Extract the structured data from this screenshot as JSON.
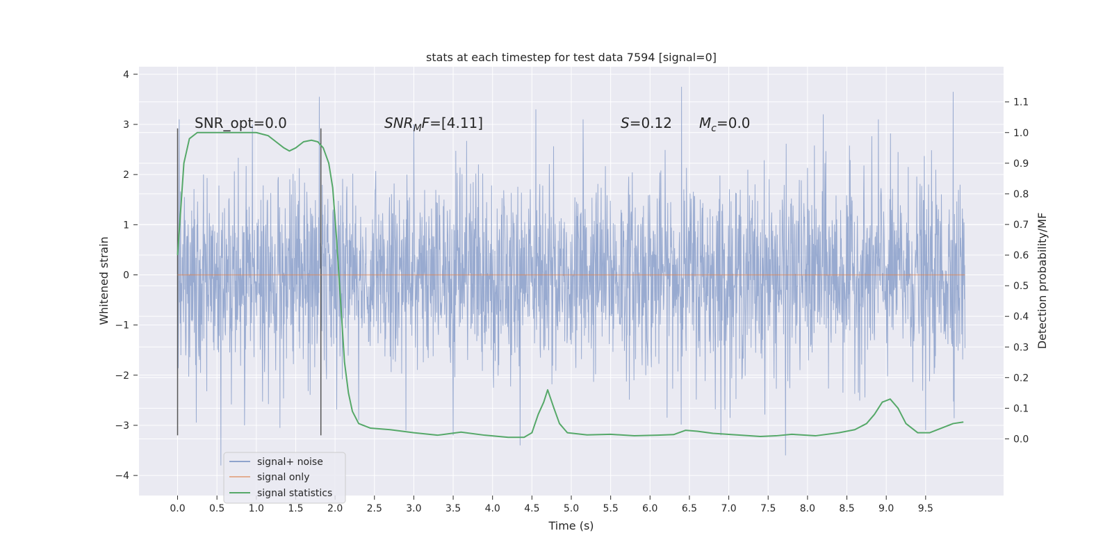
{
  "chart_data": {
    "type": "line",
    "title": "stats at each timestep for test data 7594 [signal=0]",
    "xlabel": "Time (s)",
    "ylabel": "Whitened strain",
    "y2label": "Detection probability/MF",
    "xlim": [
      -0.49,
      10.49
    ],
    "ylim": [
      -4.4,
      4.15
    ],
    "y2lim": [
      -0.185,
      1.215
    ],
    "grid": true,
    "legend_position": "lower-left",
    "x_ticks": [
      0.0,
      0.5,
      1.0,
      1.5,
      2.0,
      2.5,
      3.0,
      3.5,
      4.0,
      4.5,
      5.0,
      5.5,
      6.0,
      6.5,
      7.0,
      7.5,
      8.0,
      8.5,
      9.0,
      9.5
    ],
    "x_tick_labels": [
      "0.0",
      "0.5",
      "1.0",
      "1.5",
      "2.0",
      "2.5",
      "3.0",
      "3.5",
      "4.0",
      "4.5",
      "5.0",
      "5.5",
      "6.0",
      "6.5",
      "7.0",
      "7.5",
      "8.0",
      "8.5",
      "9.0",
      "9.5"
    ],
    "y_ticks": [
      -4,
      -3,
      -2,
      -1,
      0,
      1,
      2,
      3,
      4
    ],
    "y_tick_labels": [
      "−4",
      "−3",
      "−2",
      "−1",
      "0",
      "1",
      "2",
      "3",
      "4"
    ],
    "y2_ticks": [
      0.0,
      0.1,
      0.2,
      0.3,
      0.4,
      0.5,
      0.6,
      0.7,
      0.8,
      0.9,
      1.0,
      1.1
    ],
    "y2_tick_labels": [
      "0.0",
      "0.1",
      "0.2",
      "0.3",
      "0.4",
      "0.5",
      "0.6",
      "0.7",
      "0.8",
      "0.9",
      "1.0",
      "1.1"
    ],
    "vertical_markers": [
      {
        "x": 0.0,
        "y_range": [
          -3.2,
          2.92
        ]
      },
      {
        "x": 1.82,
        "y_range": [
          -3.2,
          2.92
        ]
      }
    ],
    "annotations": {
      "snr_opt": "SNR_opt=0.0",
      "snr_mf_main": "SNR",
      "snr_mf_sub": "M",
      "snr_mf_tail": "F",
      "snr_mf_value": "=[4.11]",
      "s_main": "S",
      "s_value": "=0.12",
      "mc_main": "M",
      "mc_sub": "c",
      "mc_value": "=0.0"
    },
    "legend": [
      {
        "label": "signal+ noise",
        "color": "#8fa3cc"
      },
      {
        "label": "signal only",
        "color": "#dd8452"
      },
      {
        "label": "signal statistics",
        "color": "#55a868"
      }
    ],
    "series": [
      {
        "name": "signal+ noise",
        "axis": "left",
        "color": "#8fa3cc",
        "x_range": [
          0.0,
          10.0
        ],
        "envelope": {
          "upper_typical": 2.0,
          "lower_typical": -2.1,
          "spikes": [
            {
              "x": 0.02,
              "y": 3.1
            },
            {
              "x": 0.55,
              "y": -3.8
            },
            {
              "x": 1.8,
              "y": 3.55
            },
            {
              "x": 2.3,
              "y": -2.9
            },
            {
              "x": 3.5,
              "y": -3.2
            },
            {
              "x": 4.55,
              "y": 3.3
            },
            {
              "x": 4.35,
              "y": -3.4
            },
            {
              "x": 6.4,
              "y": 3.75
            },
            {
              "x": 7.72,
              "y": 3.77
            },
            {
              "x": 7.72,
              "y": -3.6
            },
            {
              "x": 9.85,
              "y": 3.65
            },
            {
              "x": 9.5,
              "y": -3.1
            },
            {
              "x": 5.15,
              "y": 3.1
            },
            {
              "x": 8.2,
              "y": 3.2
            },
            {
              "x": 3.0,
              "y": 3.0
            },
            {
              "x": 1.3,
              "y": -3.05
            },
            {
              "x": 0.95,
              "y": 3.0
            },
            {
              "x": 6.9,
              "y": -3.2
            },
            {
              "x": 2.9,
              "y": -3.1
            },
            {
              "x": 8.9,
              "y": 3.1
            },
            {
              "x": 0.85,
              "y": -3.0
            }
          ]
        }
      },
      {
        "name": "signal only",
        "axis": "left",
        "color": "#dd8452",
        "x": [
          0.0,
          10.0
        ],
        "y": [
          0.0,
          0.0
        ]
      },
      {
        "name": "signal statistics",
        "axis": "right",
        "color": "#55a868",
        "x": [
          0.0,
          0.08,
          0.15,
          0.25,
          0.4,
          0.6,
          0.8,
          1.0,
          1.15,
          1.25,
          1.35,
          1.42,
          1.5,
          1.6,
          1.7,
          1.78,
          1.85,
          1.92,
          1.97,
          2.02,
          2.07,
          2.12,
          2.17,
          2.22,
          2.3,
          2.45,
          2.7,
          3.0,
          3.3,
          3.6,
          3.9,
          4.2,
          4.4,
          4.5,
          4.58,
          4.65,
          4.7,
          4.78,
          4.85,
          4.95,
          5.2,
          5.5,
          5.8,
          6.1,
          6.3,
          6.45,
          6.6,
          6.8,
          7.1,
          7.4,
          7.6,
          7.8,
          8.1,
          8.4,
          8.6,
          8.75,
          8.85,
          8.95,
          9.05,
          9.15,
          9.25,
          9.4,
          9.55,
          9.7,
          9.85,
          9.98
        ],
        "y": [
          0.6,
          0.9,
          0.98,
          1.0,
          1.0,
          1.0,
          1.0,
          1.0,
          0.99,
          0.97,
          0.95,
          0.94,
          0.95,
          0.97,
          0.975,
          0.97,
          0.95,
          0.9,
          0.82,
          0.65,
          0.45,
          0.25,
          0.15,
          0.09,
          0.05,
          0.035,
          0.03,
          0.02,
          0.012,
          0.022,
          0.012,
          0.005,
          0.005,
          0.02,
          0.08,
          0.12,
          0.16,
          0.1,
          0.05,
          0.02,
          0.013,
          0.015,
          0.01,
          0.012,
          0.014,
          0.028,
          0.025,
          0.018,
          0.013,
          0.008,
          0.01,
          0.015,
          0.01,
          0.02,
          0.03,
          0.05,
          0.08,
          0.12,
          0.13,
          0.1,
          0.05,
          0.02,
          0.02,
          0.035,
          0.05,
          0.055
        ]
      }
    ]
  }
}
